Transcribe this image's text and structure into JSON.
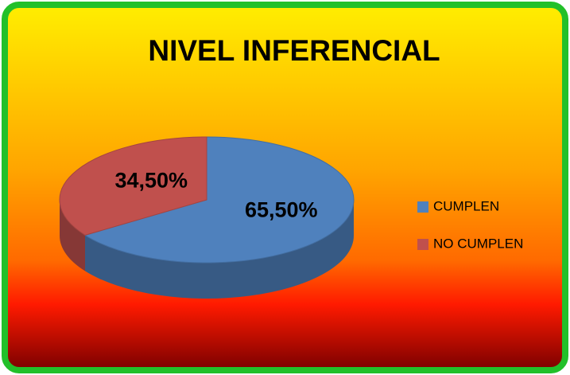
{
  "chart_data": {
    "type": "pie",
    "title": "NIVEL INFERENCIAL",
    "categories": [
      "CUMPLEN",
      "NO CUMPLEN"
    ],
    "values": [
      65.5,
      34.5
    ],
    "value_labels": [
      "65,50%",
      "34,50%"
    ],
    "colors": [
      "#4f81bd",
      "#c0504d"
    ],
    "legend": "right"
  }
}
